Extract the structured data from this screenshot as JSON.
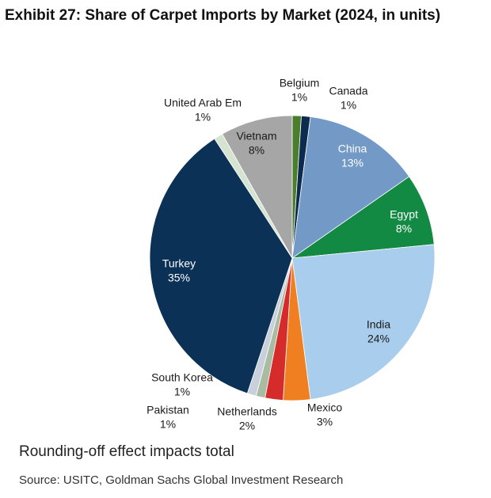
{
  "chart_data": {
    "type": "pie",
    "title": "Exhibit 27: Share of Carpet Imports by Market (2024, in units)",
    "note": "Rounding-off effect impacts total",
    "source": "Source: USITC, Goldman Sachs Global Investment Research",
    "categories": [
      "Belgium",
      "Canada",
      "China",
      "Egypt",
      "India",
      "Mexico",
      "Netherlands",
      "Pakistan",
      "South Korea",
      "Turkey",
      "United Arab Em",
      "Vietnam"
    ],
    "values": [
      1,
      1,
      13,
      8,
      24,
      3,
      2,
      1,
      1,
      35,
      1,
      8
    ],
    "value_labels": [
      "1%",
      "1%",
      "13%",
      "8%",
      "24%",
      "3%",
      "2%",
      "1%",
      "1%",
      "35%",
      "1%",
      "8%"
    ],
    "colors": [
      "#4a7d2c",
      "#0d2b4e",
      "#7399c6",
      "#138a43",
      "#a9cdec",
      "#f07f22",
      "#d62b2b",
      "#a9bba0",
      "#c8d0dc",
      "#0b3157",
      "#d5e4d0",
      "#a6a6a6"
    ]
  }
}
